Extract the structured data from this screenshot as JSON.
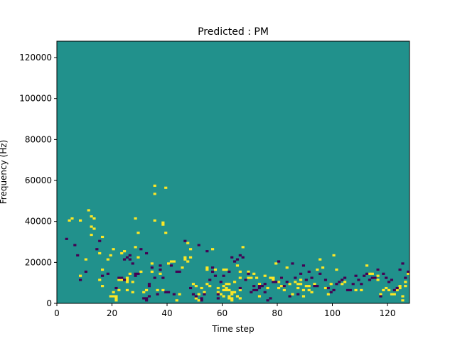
{
  "chart_data": {
    "type": "heatmap",
    "title": "Predicted : PM",
    "xlabel": "Time step",
    "ylabel": "Frequency (Hz)",
    "xlim": [
      0,
      128
    ],
    "ylim": [
      0,
      128000
    ],
    "x_ticks": [
      0,
      20,
      40,
      60,
      80,
      100,
      120
    ],
    "x_tick_labels": [
      "0",
      "20",
      "40",
      "60",
      "80",
      "100",
      "120"
    ],
    "y_ticks": [
      0,
      20000,
      40000,
      60000,
      80000,
      100000,
      120000
    ],
    "y_tick_labels": [
      "0",
      "20000",
      "40000",
      "60000",
      "80000",
      "100000",
      "120000"
    ],
    "grid": false,
    "value_range": [
      -1,
      1
    ],
    "colors": {
      "background": "#21918c",
      "high": "#fde725",
      "low": "#440154"
    },
    "cells_high": [
      [
        4,
        40
      ],
      [
        5,
        41
      ],
      [
        8,
        13
      ],
      [
        8,
        40
      ],
      [
        10,
        21
      ],
      [
        11,
        45
      ],
      [
        12,
        33
      ],
      [
        12,
        37
      ],
      [
        12,
        42
      ],
      [
        13,
        36
      ],
      [
        13,
        41
      ],
      [
        15,
        11
      ],
      [
        15,
        24
      ],
      [
        16,
        8
      ],
      [
        16,
        16
      ],
      [
        16,
        32
      ],
      [
        18,
        21
      ],
      [
        19,
        3
      ],
      [
        19,
        23
      ],
      [
        20,
        5
      ],
      [
        20,
        3
      ],
      [
        20,
        26
      ],
      [
        21,
        1
      ],
      [
        21,
        2
      ],
      [
        21,
        3
      ],
      [
        22,
        6
      ],
      [
        22,
        11
      ],
      [
        23,
        11
      ],
      [
        23,
        24
      ],
      [
        24,
        25
      ],
      [
        25,
        6
      ],
      [
        25,
        10
      ],
      [
        25,
        11
      ],
      [
        25,
        12
      ],
      [
        26,
        14
      ],
      [
        27,
        5
      ],
      [
        27,
        10
      ],
      [
        28,
        27
      ],
      [
        28,
        41
      ],
      [
        29,
        22
      ],
      [
        29,
        34
      ],
      [
        30,
        15
      ],
      [
        31,
        5
      ],
      [
        32,
        6
      ],
      [
        34,
        15
      ],
      [
        34,
        19
      ],
      [
        35,
        40
      ],
      [
        35,
        53
      ],
      [
        35,
        57
      ],
      [
        36,
        6
      ],
      [
        37,
        14
      ],
      [
        38,
        6
      ],
      [
        38,
        38
      ],
      [
        38,
        39
      ],
      [
        39,
        34
      ],
      [
        39,
        56
      ],
      [
        40,
        19
      ],
      [
        41,
        20
      ],
      [
        42,
        20
      ],
      [
        43,
        1
      ],
      [
        44,
        4
      ],
      [
        45,
        17
      ],
      [
        46,
        21
      ],
      [
        46,
        22
      ],
      [
        47,
        20
      ],
      [
        47,
        29
      ],
      [
        48,
        22
      ],
      [
        48,
        26
      ],
      [
        49,
        9
      ],
      [
        50,
        2
      ],
      [
        50,
        8
      ],
      [
        51,
        1
      ],
      [
        51,
        4
      ],
      [
        52,
        7
      ],
      [
        53,
        5
      ],
      [
        54,
        9
      ],
      [
        54,
        16
      ],
      [
        54,
        17
      ],
      [
        55,
        8
      ],
      [
        56,
        26
      ],
      [
        57,
        16
      ],
      [
        58,
        5
      ],
      [
        58,
        7
      ],
      [
        59,
        4
      ],
      [
        60,
        3
      ],
      [
        60,
        6
      ],
      [
        60,
        8
      ],
      [
        60,
        16
      ],
      [
        61,
        6
      ],
      [
        61,
        7
      ],
      [
        61,
        9
      ],
      [
        61,
        16
      ],
      [
        62,
        9
      ],
      [
        62,
        6
      ],
      [
        62,
        3
      ],
      [
        62,
        2
      ],
      [
        63,
        1
      ],
      [
        63,
        2
      ],
      [
        63,
        4
      ],
      [
        63,
        5
      ],
      [
        64,
        5
      ],
      [
        64,
        10
      ],
      [
        65,
        3
      ],
      [
        65,
        18
      ],
      [
        66,
        2
      ],
      [
        66,
        6
      ],
      [
        66,
        12
      ],
      [
        66,
        15
      ],
      [
        67,
        27
      ],
      [
        68,
        11
      ],
      [
        69,
        12
      ],
      [
        69,
        15
      ],
      [
        70,
        12
      ],
      [
        71,
        14
      ],
      [
        72,
        12
      ],
      [
        73,
        3
      ],
      [
        73,
        9
      ],
      [
        75,
        13
      ],
      [
        76,
        7
      ],
      [
        77,
        12
      ],
      [
        78,
        11
      ],
      [
        78,
        12
      ],
      [
        79,
        19
      ],
      [
        80,
        7
      ],
      [
        80,
        10
      ],
      [
        81,
        8
      ],
      [
        81,
        12
      ],
      [
        82,
        6
      ],
      [
        82,
        8
      ],
      [
        83,
        17
      ],
      [
        84,
        9
      ],
      [
        85,
        4
      ],
      [
        86,
        10
      ],
      [
        87,
        7
      ],
      [
        87,
        9
      ],
      [
        88,
        9
      ],
      [
        88,
        11
      ],
      [
        89,
        3
      ],
      [
        89,
        6
      ],
      [
        90,
        8
      ],
      [
        91,
        6
      ],
      [
        91,
        8
      ],
      [
        92,
        5
      ],
      [
        93,
        9
      ],
      [
        94,
        16
      ],
      [
        95,
        21
      ],
      [
        96,
        17
      ],
      [
        97,
        7
      ],
      [
        98,
        4
      ],
      [
        99,
        9
      ],
      [
        100,
        23
      ],
      [
        101,
        16
      ],
      [
        103,
        9
      ],
      [
        104,
        10
      ],
      [
        108,
        6
      ],
      [
        110,
        6
      ],
      [
        112,
        18
      ],
      [
        113,
        14
      ],
      [
        114,
        14
      ],
      [
        115,
        12
      ],
      [
        116,
        11
      ],
      [
        116,
        13
      ],
      [
        116,
        16
      ],
      [
        117,
        4
      ],
      [
        118,
        6
      ],
      [
        119,
        7
      ],
      [
        120,
        6
      ],
      [
        121,
        4
      ],
      [
        122,
        4
      ],
      [
        123,
        6
      ],
      [
        124,
        7
      ],
      [
        124,
        8
      ],
      [
        125,
        1
      ],
      [
        125,
        3
      ],
      [
        126,
        8
      ],
      [
        126,
        10
      ],
      [
        127,
        14
      ]
    ],
    "cells_low": [
      [
        3,
        31
      ],
      [
        6,
        28
      ],
      [
        7,
        23
      ],
      [
        8,
        11
      ],
      [
        10,
        15
      ],
      [
        14,
        26
      ],
      [
        15,
        30
      ],
      [
        16,
        13
      ],
      [
        18,
        14
      ],
      [
        21,
        7
      ],
      [
        22,
        12
      ],
      [
        23,
        12
      ],
      [
        24,
        11
      ],
      [
        24,
        21
      ],
      [
        25,
        22
      ],
      [
        26,
        21
      ],
      [
        26,
        23
      ],
      [
        27,
        19
      ],
      [
        28,
        13
      ],
      [
        28,
        14
      ],
      [
        29,
        14
      ],
      [
        30,
        26
      ],
      [
        31,
        2
      ],
      [
        32,
        1
      ],
      [
        32,
        2
      ],
      [
        32,
        24
      ],
      [
        33,
        3
      ],
      [
        33,
        8
      ],
      [
        33,
        9
      ],
      [
        34,
        17
      ],
      [
        35,
        12
      ],
      [
        36,
        4
      ],
      [
        37,
        16
      ],
      [
        37,
        18
      ],
      [
        38,
        12
      ],
      [
        39,
        5
      ],
      [
        40,
        5
      ],
      [
        41,
        18
      ],
      [
        42,
        4
      ],
      [
        43,
        15
      ],
      [
        44,
        15
      ],
      [
        46,
        30
      ],
      [
        48,
        7
      ],
      [
        49,
        4
      ],
      [
        50,
        3
      ],
      [
        51,
        28
      ],
      [
        52,
        1
      ],
      [
        52,
        2
      ],
      [
        53,
        4
      ],
      [
        54,
        25
      ],
      [
        55,
        11
      ],
      [
        56,
        15
      ],
      [
        56,
        17
      ],
      [
        57,
        13
      ],
      [
        58,
        2
      ],
      [
        58,
        4
      ],
      [
        59,
        10
      ],
      [
        60,
        13
      ],
      [
        62,
        15
      ],
      [
        63,
        22
      ],
      [
        64,
        20
      ],
      [
        65,
        21
      ],
      [
        66,
        7
      ],
      [
        66,
        23
      ],
      [
        67,
        22
      ],
      [
        68,
        11
      ],
      [
        69,
        14
      ],
      [
        70,
        5
      ],
      [
        71,
        6
      ],
      [
        71,
        8
      ],
      [
        72,
        6
      ],
      [
        73,
        7
      ],
      [
        73,
        8
      ],
      [
        74,
        8
      ],
      [
        75,
        5
      ],
      [
        75,
        9
      ],
      [
        76,
        1
      ],
      [
        77,
        2
      ],
      [
        78,
        10
      ],
      [
        79,
        10
      ],
      [
        80,
        20
      ],
      [
        81,
        12
      ],
      [
        82,
        8
      ],
      [
        83,
        10
      ],
      [
        84,
        3
      ],
      [
        85,
        19
      ],
      [
        86,
        12
      ],
      [
        87,
        4
      ],
      [
        88,
        14
      ],
      [
        89,
        18
      ],
      [
        90,
        11
      ],
      [
        91,
        15
      ],
      [
        92,
        12
      ],
      [
        93,
        8
      ],
      [
        94,
        8
      ],
      [
        95,
        14
      ],
      [
        97,
        11
      ],
      [
        98,
        7
      ],
      [
        99,
        5
      ],
      [
        100,
        6
      ],
      [
        101,
        9
      ],
      [
        102,
        10
      ],
      [
        103,
        11
      ],
      [
        104,
        12
      ],
      [
        105,
        6
      ],
      [
        106,
        6
      ],
      [
        107,
        9
      ],
      [
        108,
        13
      ],
      [
        109,
        11
      ],
      [
        110,
        9
      ],
      [
        111,
        13
      ],
      [
        112,
        14
      ],
      [
        113,
        11
      ],
      [
        114,
        12
      ],
      [
        115,
        12
      ],
      [
        116,
        16
      ],
      [
        117,
        3
      ],
      [
        118,
        14
      ],
      [
        119,
        12
      ],
      [
        120,
        10
      ],
      [
        121,
        11
      ],
      [
        122,
        6
      ],
      [
        123,
        7
      ],
      [
        124,
        16
      ],
      [
        125,
        19
      ],
      [
        126,
        12
      ],
      [
        127,
        15
      ]
    ]
  }
}
